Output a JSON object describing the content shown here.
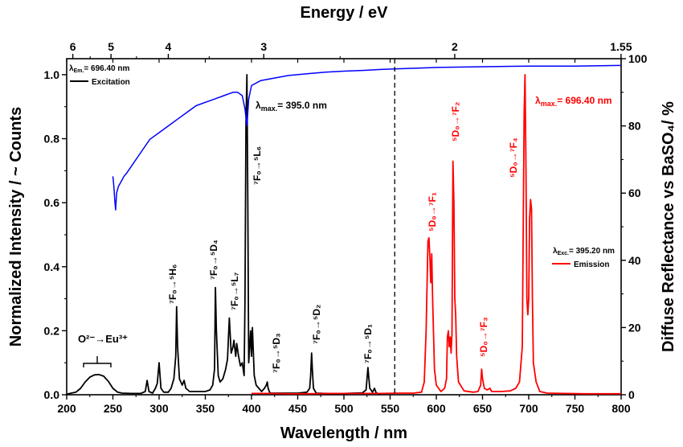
{
  "colors": {
    "excitation": "#000000",
    "emission": "#ff0000",
    "reflectance": "#0000ff",
    "axis": "#000000"
  },
  "chart_data": {
    "type": "line",
    "xlabel": "Wavelength / nm",
    "ylabel_left": "Normalized Intensity / ~ Counts",
    "ylabel_right": "Diffuse Reflectance vs BaSO₄/ %",
    "top_axis_label": "Energy / eV",
    "xlim": [
      200,
      800
    ],
    "ylim_left": [
      0,
      1.05
    ],
    "ylim_right": [
      0,
      100
    ],
    "x_ticks": [
      "200",
      "250",
      "300",
      "350",
      "400",
      "450",
      "500",
      "550",
      "600",
      "650",
      "700",
      "750",
      "800"
    ],
    "y_left_ticks": [
      "0.0",
      "0.2",
      "0.4",
      "0.6",
      "0.8",
      "1.0"
    ],
    "y_right_ticks": [
      "0",
      "20",
      "40",
      "60",
      "80",
      "100"
    ],
    "top_ticks": [
      {
        "label": "6",
        "ev": 6
      },
      {
        "label": "5",
        "ev": 5
      },
      {
        "label": "4",
        "ev": 4
      },
      {
        "label": "3",
        "ev": 3
      },
      {
        "label": "2",
        "ev": 2
      },
      {
        "label": "1.55",
        "ev": 1.55
      }
    ],
    "top_minor_ticks_ev": [
      5.5,
      4.5,
      3.5,
      2.5
    ],
    "divider_x": 555,
    "grid": false,
    "series": [
      {
        "name": "Excitation",
        "axis": "left",
        "points": [
          [
            200,
            0.002
          ],
          [
            210,
            0.008
          ],
          [
            215,
            0.02
          ],
          [
            220,
            0.04
          ],
          [
            225,
            0.055
          ],
          [
            230,
            0.062
          ],
          [
            235,
            0.063
          ],
          [
            240,
            0.058
          ],
          [
            245,
            0.042
          ],
          [
            250,
            0.02
          ],
          [
            255,
            0.008
          ],
          [
            260,
            0.005
          ],
          [
            270,
            0.004
          ],
          [
            280,
            0.004
          ],
          [
            285,
            0.01
          ],
          [
            287,
            0.045
          ],
          [
            289,
            0.01
          ],
          [
            293,
            0.005
          ],
          [
            296,
            0.02
          ],
          [
            298,
            0.035
          ],
          [
            300,
            0.1
          ],
          [
            302,
            0.02
          ],
          [
            305,
            0.008
          ],
          [
            310,
            0.008
          ],
          [
            313,
            0.02
          ],
          [
            316,
            0.05
          ],
          [
            318,
            0.12
          ],
          [
            319,
            0.275
          ],
          [
            320,
            0.15
          ],
          [
            322,
            0.05
          ],
          [
            325,
            0.03
          ],
          [
            327,
            0.045
          ],
          [
            329,
            0.02
          ],
          [
            333,
            0.01
          ],
          [
            340,
            0.01
          ],
          [
            350,
            0.01
          ],
          [
            355,
            0.015
          ],
          [
            358,
            0.03
          ],
          [
            360,
            0.08
          ],
          [
            361,
            0.335
          ],
          [
            362,
            0.2
          ],
          [
            364,
            0.06
          ],
          [
            366,
            0.04
          ],
          [
            369,
            0.05
          ],
          [
            372,
            0.08
          ],
          [
            374,
            0.11
          ],
          [
            376,
            0.24
          ],
          [
            378,
            0.13
          ],
          [
            380,
            0.15
          ],
          [
            381,
            0.17
          ],
          [
            383,
            0.12
          ],
          [
            384,
            0.16
          ],
          [
            386,
            0.12
          ],
          [
            388,
            0.09
          ],
          [
            390,
            0.1
          ],
          [
            392,
            0.06
          ],
          [
            393,
            0.3
          ],
          [
            394,
            0.85
          ],
          [
            395,
            1.0
          ],
          [
            396,
            0.6
          ],
          [
            397,
            0.1
          ],
          [
            398,
            0.15
          ],
          [
            399,
            0.2
          ],
          [
            400,
            0.12
          ],
          [
            401,
            0.21
          ],
          [
            403,
            0.06
          ],
          [
            405,
            0.03
          ],
          [
            408,
            0.02
          ],
          [
            411,
            0.01
          ],
          [
            414,
            0.02
          ],
          [
            416,
            0.03
          ],
          [
            417,
            0.04
          ],
          [
            418,
            0.02
          ],
          [
            420,
            0.005
          ],
          [
            430,
            0.005
          ],
          [
            440,
            0.005
          ],
          [
            450,
            0.005
          ],
          [
            460,
            0.008
          ],
          [
            463,
            0.02
          ],
          [
            464,
            0.06
          ],
          [
            465,
            0.13
          ],
          [
            466,
            0.07
          ],
          [
            467,
            0.02
          ],
          [
            470,
            0.005
          ],
          [
            480,
            0.004
          ],
          [
            500,
            0.004
          ],
          [
            520,
            0.006
          ],
          [
            524,
            0.015
          ],
          [
            526,
            0.085
          ],
          [
            527,
            0.05
          ],
          [
            528,
            0.02
          ],
          [
            531,
            0.008
          ],
          [
            533,
            0.02
          ],
          [
            535,
            0.005
          ],
          [
            540,
            0.003
          ]
        ]
      },
      {
        "name": "Emission",
        "axis": "left",
        "points": [
          [
            400,
            0.004
          ],
          [
            420,
            0.004
          ],
          [
            440,
            0.003
          ],
          [
            460,
            0.003
          ],
          [
            490,
            0.004
          ],
          [
            520,
            0.004
          ],
          [
            540,
            0.004
          ],
          [
            560,
            0.005
          ],
          [
            575,
            0.005
          ],
          [
            584,
            0.008
          ],
          [
            587,
            0.04
          ],
          [
            589,
            0.2
          ],
          [
            591,
            0.48
          ],
          [
            592,
            0.49
          ],
          [
            593,
            0.43
          ],
          [
            594,
            0.35
          ],
          [
            595,
            0.44
          ],
          [
            596,
            0.3
          ],
          [
            598,
            0.08
          ],
          [
            600,
            0.03
          ],
          [
            605,
            0.01
          ],
          [
            609,
            0.02
          ],
          [
            611,
            0.05
          ],
          [
            612,
            0.18
          ],
          [
            613,
            0.2
          ],
          [
            614,
            0.15
          ],
          [
            615,
            0.18
          ],
          [
            616,
            0.13
          ],
          [
            617,
            0.19
          ],
          [
            618,
            0.73
          ],
          [
            619,
            0.6
          ],
          [
            620,
            0.3
          ],
          [
            621,
            0.25
          ],
          [
            622,
            0.12
          ],
          [
            624,
            0.04
          ],
          [
            630,
            0.012
          ],
          [
            640,
            0.008
          ],
          [
            645,
            0.01
          ],
          [
            648,
            0.03
          ],
          [
            649,
            0.08
          ],
          [
            650,
            0.05
          ],
          [
            652,
            0.02
          ],
          [
            655,
            0.015
          ],
          [
            658,
            0.02
          ],
          [
            660,
            0.01
          ],
          [
            670,
            0.01
          ],
          [
            680,
            0.012
          ],
          [
            686,
            0.02
          ],
          [
            690,
            0.04
          ],
          [
            693,
            0.15
          ],
          [
            694,
            0.5
          ],
          [
            695,
            0.88
          ],
          [
            696,
            1.0
          ],
          [
            697,
            0.7
          ],
          [
            698,
            0.3
          ],
          [
            699,
            0.25
          ],
          [
            700,
            0.3
          ],
          [
            701,
            0.55
          ],
          [
            702,
            0.61
          ],
          [
            703,
            0.58
          ],
          [
            704,
            0.3
          ],
          [
            705,
            0.1
          ],
          [
            708,
            0.04
          ],
          [
            712,
            0.01
          ],
          [
            720,
            0.005
          ],
          [
            760,
            0.003
          ],
          [
            800,
            0.003
          ]
        ]
      },
      {
        "name": "Reflectance",
        "axis": "right",
        "points": [
          [
            250,
            65
          ],
          [
            251,
            62
          ],
          [
            252,
            58
          ],
          [
            253,
            55
          ],
          [
            254,
            60
          ],
          [
            256,
            62
          ],
          [
            258,
            63
          ],
          [
            262,
            65
          ],
          [
            265,
            66
          ],
          [
            270,
            68
          ],
          [
            280,
            72
          ],
          [
            290,
            76
          ],
          [
            300,
            78
          ],
          [
            310,
            80
          ],
          [
            320,
            82
          ],
          [
            330,
            84
          ],
          [
            340,
            86
          ],
          [
            350,
            87
          ],
          [
            360,
            88
          ],
          [
            370,
            89
          ],
          [
            380,
            90
          ],
          [
            385,
            90
          ],
          [
            390,
            89
          ],
          [
            393,
            85
          ],
          [
            395,
            80
          ],
          [
            397,
            88
          ],
          [
            400,
            92
          ],
          [
            410,
            93.5
          ],
          [
            420,
            94
          ],
          [
            440,
            95
          ],
          [
            460,
            95.5
          ],
          [
            480,
            96
          ],
          [
            500,
            96.3
          ],
          [
            520,
            96.5
          ],
          [
            540,
            96.8
          ],
          [
            560,
            97
          ],
          [
            580,
            97.2
          ],
          [
            600,
            97.4
          ],
          [
            650,
            97.6
          ],
          [
            700,
            97.8
          ],
          [
            750,
            97.8
          ],
          [
            800,
            98
          ]
        ]
      }
    ],
    "annotations": {
      "charge_transfer_label": "O²⁻→Eu³⁺",
      "lambda_max_exc": "λ",
      "lambda_max_exc_sub": "max.",
      "lambda_max_exc_value": "= 395.0 nm",
      "lambda_max_em": "λ",
      "lambda_max_em_sub": "max.",
      "lambda_max_em_value": "= 696.40 nm",
      "t_5H6": "⁷F₀→⁵H₆",
      "t_5D4": "⁷F₀→⁵D₄",
      "t_5L7": "⁷F₀→⁵L₇",
      "t_5L6": "⁷F₀→⁵L₆",
      "t_5D3": "⁷F₀→⁵D₃",
      "t_5D2": "⁷F₀→⁵D₂",
      "t_5D1": "⁷F₀→⁵D₁",
      "t_7F1": "⁵D₀→⁷F₁",
      "t_7F2": "⁵D₀→⁷F₂",
      "t_7F3": "⁵D₀→⁷F₃",
      "t_7F4": "⁵D₀→⁷F₄"
    },
    "legend_excitation": {
      "header_lambda": "λ",
      "header_sub": "Em.",
      "header_value": "= 696.40 nm",
      "label": "Excitation",
      "placement": "top-left"
    },
    "legend_emission": {
      "header_lambda": "λ",
      "header_sub": "Exc.",
      "header_value": "= 395.20 nm",
      "label": "Emission",
      "placement": "middle-right"
    }
  }
}
